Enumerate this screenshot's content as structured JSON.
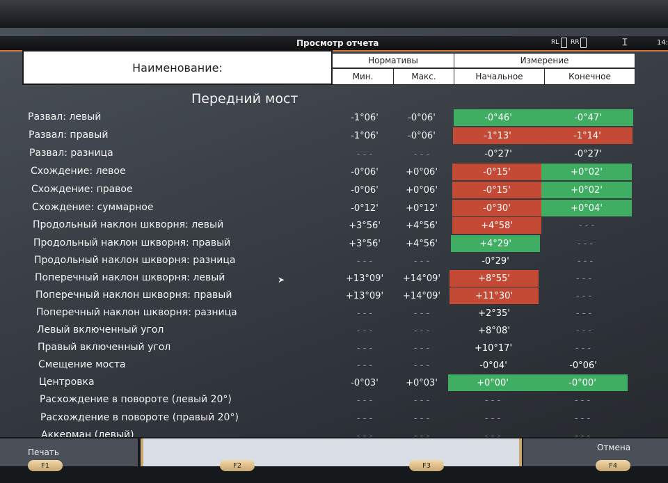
{
  "window": {
    "title": "Просмотр отчета",
    "rl_label": "RL",
    "rr_label": "RR",
    "clock": "14:"
  },
  "header": {
    "name_col": "Наименование:",
    "norms": "Нормативы",
    "measurement": "Измерение",
    "min": "Мин.",
    "max": "Макс.",
    "initial": "Начальное",
    "final": "Конечное"
  },
  "section_title": "Передний мост",
  "rows": [
    {
      "label": "Развал: левый",
      "min": "-1°06'",
      "max": "-0°06'",
      "initial": "-0°46'",
      "final": "-0°47'",
      "initial_status": "green",
      "final_status": "green"
    },
    {
      "label": "Развал: правый",
      "min": "-1°06'",
      "max": "-0°06'",
      "initial": "-1°13'",
      "final": "-1°14'",
      "initial_status": "red",
      "final_status": "red"
    },
    {
      "label": "Развал: разница",
      "min": "- - -",
      "max": "- - -",
      "initial": "-0°27'",
      "final": "-0°27'",
      "initial_status": "none",
      "final_status": "none"
    },
    {
      "label": "Схождение: левое",
      "min": "-0°06'",
      "max": "+0°06'",
      "initial": "-0°15'",
      "final": "+0°02'",
      "initial_status": "red",
      "final_status": "green"
    },
    {
      "label": "Схождение: правое",
      "min": "-0°06'",
      "max": "+0°06'",
      "initial": "-0°15'",
      "final": "+0°02'",
      "initial_status": "red",
      "final_status": "green"
    },
    {
      "label": "Схождение: суммарное",
      "min": "-0°12'",
      "max": "+0°12'",
      "initial": "-0°30'",
      "final": "+0°04'",
      "initial_status": "red",
      "final_status": "green"
    },
    {
      "label": "Продольный наклон шкворня: левый",
      "min": "+3°56'",
      "max": "+4°56'",
      "initial": "+4°58'",
      "final": "- - -",
      "initial_status": "red",
      "final_status": "none"
    },
    {
      "label": "Продольный наклон шкворня: правый",
      "min": "+3°56'",
      "max": "+4°56'",
      "initial": "+4°29'",
      "final": "- - -",
      "initial_status": "green",
      "final_status": "none"
    },
    {
      "label": "Продольный наклон шкворня: разница",
      "min": "- - -",
      "max": "- - -",
      "initial": "-0°29'",
      "final": "- - -",
      "initial_status": "none",
      "final_status": "none"
    },
    {
      "label": "Поперечный наклон шкворня: левый",
      "min": "+13°09'",
      "max": "+14°09'",
      "initial": "+8°55'",
      "final": "- - -",
      "initial_status": "red",
      "final_status": "none"
    },
    {
      "label": "Поперечный наклон шкворня: правый",
      "min": "+13°09'",
      "max": "+14°09'",
      "initial": "+11°30'",
      "final": "- - -",
      "initial_status": "red",
      "final_status": "none"
    },
    {
      "label": "Поперечный наклон шкворня: разница",
      "min": "- - -",
      "max": "- - -",
      "initial": "+2°35'",
      "final": "- - -",
      "initial_status": "none",
      "final_status": "none"
    },
    {
      "label": "Левый включенный угол",
      "min": "- - -",
      "max": "- - -",
      "initial": "+8°08'",
      "final": "- - -",
      "initial_status": "none",
      "final_status": "none"
    },
    {
      "label": "Правый включенный угол",
      "min": "- - -",
      "max": "- - -",
      "initial": "+10°17'",
      "final": "- - -",
      "initial_status": "none",
      "final_status": "none"
    },
    {
      "label": "Смещение моста",
      "min": "- - -",
      "max": "- - -",
      "initial": "-0°04'",
      "final": "-0°06'",
      "initial_status": "none",
      "final_status": "none"
    },
    {
      "label": "Центровка",
      "min": "-0°03'",
      "max": "+0°03'",
      "initial": "+0°00'",
      "final": "-0°00'",
      "initial_status": "green",
      "final_status": "green"
    },
    {
      "label": "Расхождение в повороте (левый 20°)",
      "min": "- - -",
      "max": "- - -",
      "initial": "- - -",
      "final": "- - -",
      "initial_status": "none",
      "final_status": "none"
    },
    {
      "label": "Расхождение в повороте (правый 20°)",
      "min": "- - -",
      "max": "- - -",
      "initial": "- - -",
      "final": "- - -",
      "initial_status": "none",
      "final_status": "none"
    },
    {
      "label": "Аккерман (левый)",
      "min": "- - -",
      "max": "- - -",
      "initial": "- - -",
      "final": "- - -",
      "initial_status": "none",
      "final_status": "none"
    }
  ],
  "footer": {
    "print_label": "Печать",
    "cancel_label": "Отмена",
    "f1": "F1",
    "f2": "F2",
    "f3": "F3",
    "f4": "F4"
  },
  "colors": {
    "ok": "#3fae63",
    "out_of_range": "#c54a35",
    "title_accent": "#d9773a"
  }
}
